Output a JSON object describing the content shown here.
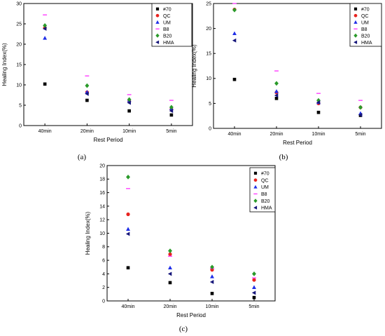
{
  "series_styles": [
    {
      "name": "#70",
      "color": "#000000",
      "marker": "square"
    },
    {
      "name": "QC",
      "color": "#e8231f",
      "marker": "circle"
    },
    {
      "name": "UM",
      "color": "#1f2ee8",
      "marker": "triangle-up"
    },
    {
      "name": "B8",
      "color": "#ff3cff",
      "marker": "dash"
    },
    {
      "name": "B20",
      "color": "#2a9a2a",
      "marker": "diamond"
    },
    {
      "name": "HMA",
      "color": "#15157a",
      "marker": "triangle-left"
    }
  ],
  "chart_data": [
    {
      "panel_label": "(a)",
      "type": "scatter",
      "xlabel": "Rest Period",
      "ylabel": "Healing Index(%)",
      "categories": [
        "40min",
        "20min",
        "10min",
        "5min"
      ],
      "ylim": [
        0,
        30
      ],
      "yticks": [
        0,
        5,
        10,
        15,
        20,
        25,
        30
      ],
      "legend_position": "top-right",
      "series": [
        {
          "name": "#70",
          "values": [
            10.2,
            6.2,
            3.6,
            2.6
          ]
        },
        {
          "name": "QC",
          "values": [
            24.0,
            8.2,
            6.0,
            4.0
          ]
        },
        {
          "name": "UM",
          "values": [
            21.5,
            8.2,
            6.2,
            4.2
          ]
        },
        {
          "name": "B8",
          "values": [
            27.2,
            12.2,
            7.6,
            6.2
          ]
        },
        {
          "name": "B20",
          "values": [
            24.6,
            9.8,
            6.4,
            4.5
          ]
        },
        {
          "name": "HMA",
          "values": [
            23.8,
            7.8,
            5.6,
            3.6
          ]
        }
      ]
    },
    {
      "panel_label": "(b)",
      "type": "scatter",
      "xlabel": "Rest Period",
      "ylabel": "Healing Index(%)",
      "categories": [
        "40min",
        "20min",
        "10min",
        "5min"
      ],
      "ylim": [
        0,
        25
      ],
      "yticks": [
        0,
        5,
        10,
        15,
        20,
        25
      ],
      "legend_position": "top-right",
      "series": [
        {
          "name": "#70",
          "values": [
            9.8,
            6.0,
            3.2,
            2.6
          ]
        },
        {
          "name": "QC",
          "values": [
            23.8,
            7.2,
            5.0,
            4.2
          ]
        },
        {
          "name": "UM",
          "values": [
            19.0,
            7.4,
            5.2,
            3.0
          ]
        },
        {
          "name": "B8",
          "values": [
            25.0,
            11.5,
            7.0,
            5.6
          ]
        },
        {
          "name": "B20",
          "values": [
            23.7,
            9.0,
            5.6,
            4.2
          ]
        },
        {
          "name": "HMA",
          "values": [
            17.6,
            6.6,
            5.2,
            2.7
          ]
        }
      ]
    },
    {
      "panel_label": "(c)",
      "type": "scatter",
      "xlabel": "Rest Period",
      "ylabel": "Healing Index(%)",
      "categories": [
        "40min",
        "20min",
        "10min",
        "5min"
      ],
      "ylim": [
        0,
        20
      ],
      "yticks": [
        0,
        2,
        4,
        6,
        8,
        10,
        12,
        14,
        16,
        18,
        20
      ],
      "legend_position": "top-right",
      "series": [
        {
          "name": "#70",
          "values": [
            4.9,
            2.7,
            1.1,
            0.5
          ]
        },
        {
          "name": "QC",
          "values": [
            12.8,
            6.9,
            4.6,
            3.1
          ]
        },
        {
          "name": "UM",
          "values": [
            10.6,
            4.9,
            3.6,
            2.0
          ]
        },
        {
          "name": "B8",
          "values": [
            16.6,
            6.6,
            4.8,
            3.4
          ]
        },
        {
          "name": "B20",
          "values": [
            18.3,
            7.4,
            5.0,
            4.0
          ]
        },
        {
          "name": "HMA",
          "values": [
            9.9,
            4.0,
            2.8,
            1.2
          ]
        }
      ]
    }
  ]
}
